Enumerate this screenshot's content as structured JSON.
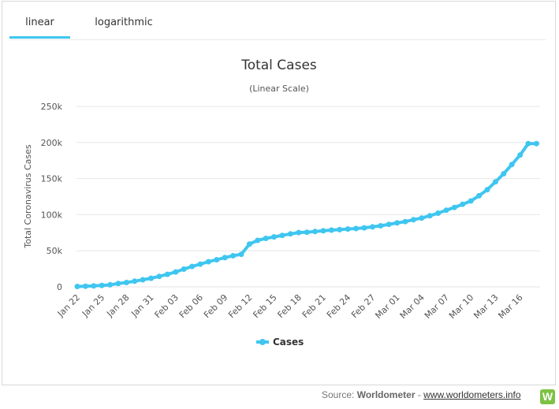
{
  "tabs": [
    {
      "label": "linear",
      "active": true
    },
    {
      "label": "logarithmic",
      "active": false
    }
  ],
  "source": {
    "prefix": "Source: ",
    "brand": "Worldometer",
    "separator": " - ",
    "link": "www.worldometers.info",
    "logo_letter": "W"
  },
  "colors": {
    "series": "#3fc6f0",
    "tab_active": "#3fc6f0",
    "logo": "#7dc243"
  },
  "chart_data": {
    "type": "line",
    "title": "Total Cases",
    "subtitle": "(Linear Scale)",
    "ylabel": "Total Coronavirus Cases",
    "xlabel": "",
    "ylim": [
      0,
      250000
    ],
    "yticks": [
      0,
      50000,
      100000,
      150000,
      200000,
      250000
    ],
    "ytick_labels": [
      "0",
      "50k",
      "100k",
      "150k",
      "200k",
      "250k"
    ],
    "x_tick_labels": [
      "Jan 22",
      "Jan 25",
      "Jan 28",
      "Jan 31",
      "Feb 03",
      "Feb 06",
      "Feb 09",
      "Feb 12",
      "Feb 15",
      "Feb 18",
      "Feb 21",
      "Feb 24",
      "Feb 27",
      "Mar 01",
      "Mar 04",
      "Mar 07",
      "Mar 10",
      "Mar 13",
      "Mar 16"
    ],
    "grid": true,
    "legend": "bottom-center",
    "x": [
      "Jan 22",
      "Jan 23",
      "Jan 24",
      "Jan 25",
      "Jan 26",
      "Jan 27",
      "Jan 28",
      "Jan 29",
      "Jan 30",
      "Jan 31",
      "Feb 01",
      "Feb 02",
      "Feb 03",
      "Feb 04",
      "Feb 05",
      "Feb 06",
      "Feb 07",
      "Feb 08",
      "Feb 09",
      "Feb 10",
      "Feb 11",
      "Feb 12",
      "Feb 13",
      "Feb 14",
      "Feb 15",
      "Feb 16",
      "Feb 17",
      "Feb 18",
      "Feb 19",
      "Feb 20",
      "Feb 21",
      "Feb 22",
      "Feb 23",
      "Feb 24",
      "Feb 25",
      "Feb 26",
      "Feb 27",
      "Feb 28",
      "Feb 29",
      "Mar 01",
      "Mar 02",
      "Mar 03",
      "Mar 04",
      "Mar 05",
      "Mar 06",
      "Mar 07",
      "Mar 08",
      "Mar 09",
      "Mar 10",
      "Mar 11",
      "Mar 12",
      "Mar 13",
      "Mar 14",
      "Mar 15",
      "Mar 16",
      "Mar 17",
      "Mar 18"
    ],
    "series": [
      {
        "name": "Cases",
        "values": [
          580,
          845,
          1317,
          2015,
          2800,
          4581,
          6058,
          7813,
          9823,
          11950,
          14553,
          17391,
          20630,
          24545,
          28276,
          31439,
          34876,
          37552,
          40553,
          43099,
          45134,
          59287,
          64438,
          67100,
          69197,
          71329,
          73332,
          75184,
          75700,
          76677,
          77673,
          78651,
          79205,
          80087,
          80828,
          81820,
          83112,
          84615,
          86604,
          88585,
          90443,
          93016,
          95314,
          98425,
          102050,
          106099,
          109991,
          114381,
          118948,
          126214,
          134576,
          145483,
          156653,
          169593,
          182490,
          198426,
          198426
        ]
      }
    ]
  }
}
